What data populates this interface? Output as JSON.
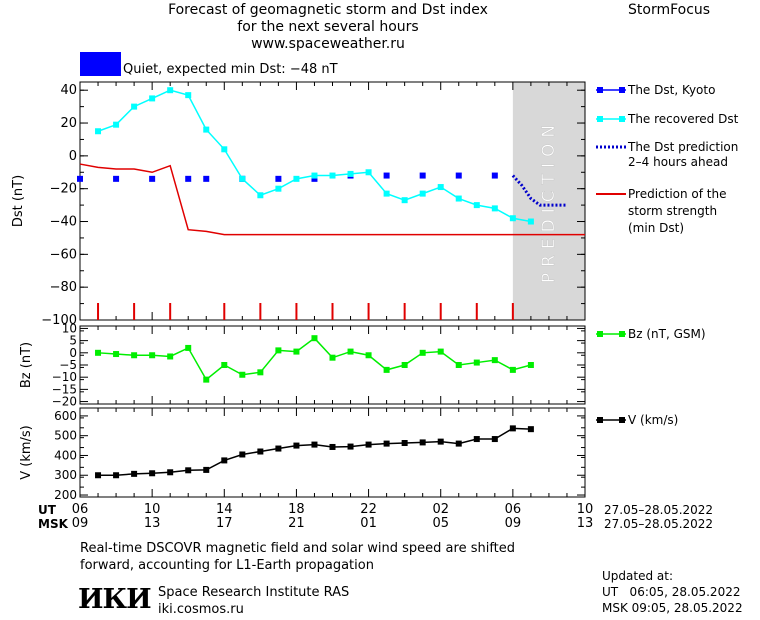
{
  "header": {
    "title_lines": [
      "Forecast of geomagnetic storm and Dst index",
      "for the next several hours",
      "www.spaceweather.ru"
    ],
    "brand": "StormFocus"
  },
  "status": {
    "text": "Quiet, expected min Dst: −48 nT",
    "color": "#0000ff"
  },
  "colors": {
    "dst_kyoto": "#0000ff",
    "recovered": "#00ffff",
    "prediction": "#0000cc",
    "storm": "#e00000",
    "bz": "#00ee00",
    "v": "#000000",
    "forecast_band": "#d8d8d8"
  },
  "legend": {
    "dst_kyoto": "The Dst, Kyoto",
    "recovered": "The recovered Dst",
    "prediction_l1": "The Dst prediction",
    "prediction_l2": "2–4 hours ahead",
    "storm_l1": "Prediction of the",
    "storm_l2": "storm strength",
    "storm_l3": "(min Dst)",
    "bz": "Bz (nT, GSM)",
    "v": "V (km/s)"
  },
  "axes": {
    "ut_label": "UT",
    "msk_label": "MSK",
    "ut_ticks": [
      "06",
      "10",
      "14",
      "18",
      "22",
      "02",
      "06",
      "10"
    ],
    "msk_ticks": [
      "09",
      "13",
      "17",
      "21",
      "01",
      "05",
      "09",
      "13"
    ],
    "date_range_ut": "27.05–28.05.2022",
    "date_range_msk": "27.05–28.05.2022"
  },
  "forecast_label": "PREDICTION",
  "footer": {
    "note_l1": "Real-time DSCOVR magnetic field and solar wind speed are shifted",
    "note_l2": "forward, accounting for L1-Earth propagation",
    "org_logo": "ИКИ",
    "org_name": "Space Research Institute RAS",
    "org_site": "iki.cosmos.ru",
    "updated_label": "Updated at:",
    "updated_ut": "UT   06:05, 28.05.2022",
    "updated_msk": "MSK 09:05, 28.05.2022"
  },
  "chart_data": [
    {
      "type": "line",
      "ylabel": "Dst (nT)",
      "ylim": [
        -100,
        45
      ],
      "yticks": [
        40,
        20,
        0,
        -20,
        -40,
        -60,
        -80,
        -100
      ],
      "x_unit": "hours (UT, 27.05 06:00 = 0)",
      "xlim": [
        0,
        28
      ],
      "forecast_start": 24,
      "series": [
        {
          "name": "The Dst, Kyoto",
          "key": "dst_kyoto",
          "style": "markers",
          "x": [
            0,
            2,
            4,
            6,
            7,
            9,
            11,
            13,
            15,
            17,
            19,
            21,
            23
          ],
          "y": [
            -14,
            -14,
            -14,
            -14,
            -14,
            -14,
            -14,
            -14,
            -12,
            -12,
            -12,
            -12,
            -12
          ]
        },
        {
          "name": "The recovered Dst",
          "key": "recovered",
          "style": "line-markers",
          "x": [
            1,
            2,
            3,
            4,
            5,
            6,
            7,
            8,
            9,
            10,
            11,
            12,
            13,
            14,
            15,
            16,
            17,
            18,
            19,
            20,
            21,
            22,
            23,
            24,
            25
          ],
          "y": [
            15,
            19,
            30,
            35,
            40,
            37,
            16,
            4,
            -14,
            -24,
            -20,
            -14,
            -12,
            -12,
            -11,
            -10,
            -23,
            -27,
            -23,
            -19,
            -26,
            -30,
            -32,
            -38,
            -40
          ]
        },
        {
          "name": "The Dst prediction 2–4 hours ahead",
          "key": "prediction",
          "style": "dotted",
          "x": [
            24,
            24.5,
            25,
            25.5,
            26,
            26.5,
            27
          ],
          "y": [
            -12,
            -18,
            -26,
            -30,
            -30,
            -30,
            -30
          ]
        },
        {
          "name": "Prediction of the storm strength (min Dst)",
          "key": "storm",
          "style": "line",
          "x": [
            0,
            1,
            2,
            3,
            4,
            5,
            6,
            7,
            8,
            9,
            10,
            28
          ],
          "y": [
            -5,
            -7,
            -8,
            -8,
            -10,
            -6,
            -45,
            -46,
            -48,
            -48,
            -48,
            -48
          ]
        },
        {
          "name": "storm ticks",
          "key": "storm",
          "style": "ticks",
          "x": [
            1,
            3,
            5,
            8,
            10,
            12,
            14,
            16,
            18,
            20,
            22,
            24
          ]
        }
      ]
    },
    {
      "type": "line",
      "ylabel": "Bz (nT)",
      "ylim": [
        -21,
        11
      ],
      "yticks": [
        10,
        5,
        0,
        -5,
        -10,
        -15,
        -20
      ],
      "series": [
        {
          "name": "Bz (nT, GSM)",
          "key": "bz",
          "x": [
            1,
            2,
            3,
            4,
            5,
            6,
            7,
            8,
            9,
            10,
            11,
            12,
            13,
            14,
            15,
            16,
            17,
            18,
            19,
            20,
            21,
            22,
            23,
            24,
            25
          ],
          "y": [
            0,
            -0.5,
            -1,
            -1,
            -1.5,
            2,
            -11,
            -5,
            -9,
            -8,
            1,
            0.5,
            6,
            -2,
            0.5,
            -1,
            -7,
            -5,
            0,
            0.5,
            -5,
            -4,
            -3,
            -7,
            -5
          ]
        }
      ]
    },
    {
      "type": "line",
      "ylabel": "V (km/s)",
      "ylim": [
        190,
        640
      ],
      "yticks": [
        600,
        500,
        400,
        300,
        200
      ],
      "series": [
        {
          "name": "V (km/s)",
          "key": "v",
          "x": [
            1,
            2,
            3,
            4,
            5,
            6,
            7,
            8,
            9,
            10,
            11,
            12,
            13,
            14,
            15,
            16,
            17,
            18,
            19,
            20,
            21,
            22,
            23,
            24,
            25
          ],
          "y": [
            300,
            300,
            307,
            310,
            315,
            325,
            327,
            375,
            405,
            420,
            435,
            450,
            455,
            443,
            445,
            455,
            460,
            463,
            466,
            470,
            460,
            483,
            483,
            537,
            533
          ]
        }
      ]
    }
  ]
}
